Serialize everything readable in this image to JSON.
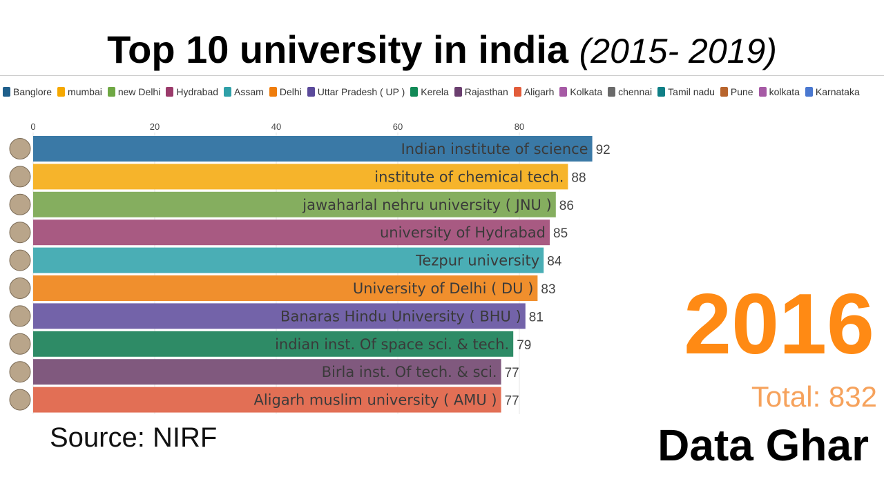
{
  "title": {
    "main": "Top 10 university in india",
    "sub": "(2015- 2019)"
  },
  "legend": [
    {
      "label": "Banglore",
      "color": "#1f5f8b"
    },
    {
      "label": "mumbai",
      "color": "#f5a800"
    },
    {
      "label": "new Delhi",
      "color": "#6fa844"
    },
    {
      "label": "Hydrabad",
      "color": "#9b3b6b"
    },
    {
      "label": "Assam",
      "color": "#2fa0a8"
    },
    {
      "label": "Delhi",
      "color": "#ef7d0c"
    },
    {
      "label": "Uttar Pradesh ( UP )",
      "color": "#5b4a9b"
    },
    {
      "label": "Kerela",
      "color": "#128a57"
    },
    {
      "label": "Rajasthan",
      "color": "#6b3f6f"
    },
    {
      "label": "Aligarh",
      "color": "#e25c3a"
    },
    {
      "label": "Kolkata",
      "color": "#a65aa5"
    },
    {
      "label": "chennai",
      "color": "#6a6a6a"
    },
    {
      "label": "Tamil nadu",
      "color": "#0f7f86"
    },
    {
      "label": "Pune",
      "color": "#b8652d"
    },
    {
      "label": "kolkata",
      "color": "#a65aa5"
    },
    {
      "label": "Karnataka",
      "color": "#4a78d0"
    }
  ],
  "chart_data": {
    "type": "bar",
    "orientation": "horizontal",
    "xlim": [
      0,
      92
    ],
    "xticks": [
      0,
      20,
      40,
      60,
      80
    ],
    "grid": true,
    "bars": [
      {
        "label": "Indian institute of science",
        "value": 92,
        "color": "#3a79a6"
      },
      {
        "label": "institute of chemical tech.",
        "value": 88,
        "color": "#f6b42b"
      },
      {
        "label": "jawaharlal nehru university ( JNU )",
        "value": 86,
        "color": "#85ae5f"
      },
      {
        "label": "university of Hydrabad",
        "value": 85,
        "color": "#a85a82"
      },
      {
        "label": "Tezpur university",
        "value": 84,
        "color": "#4aaeb5"
      },
      {
        "label": "University of Delhi ( DU )",
        "value": 83,
        "color": "#f08f2d"
      },
      {
        "label": "Banaras Hindu University ( BHU )",
        "value": 81,
        "color": "#7363a9"
      },
      {
        "label": "indian inst. Of space sci. & tech.",
        "value": 79,
        "color": "#2e8b66"
      },
      {
        "label": "Birla inst. Of tech. & sci.",
        "value": 77,
        "color": "#80597e"
      },
      {
        "label": "Aligarh muslim university ( AMU )",
        "value": 77,
        "color": "#e26f55"
      }
    ]
  },
  "year": "2016",
  "total": "Total: 832",
  "source": "Source: NIRF",
  "brand": "Data Ghar"
}
